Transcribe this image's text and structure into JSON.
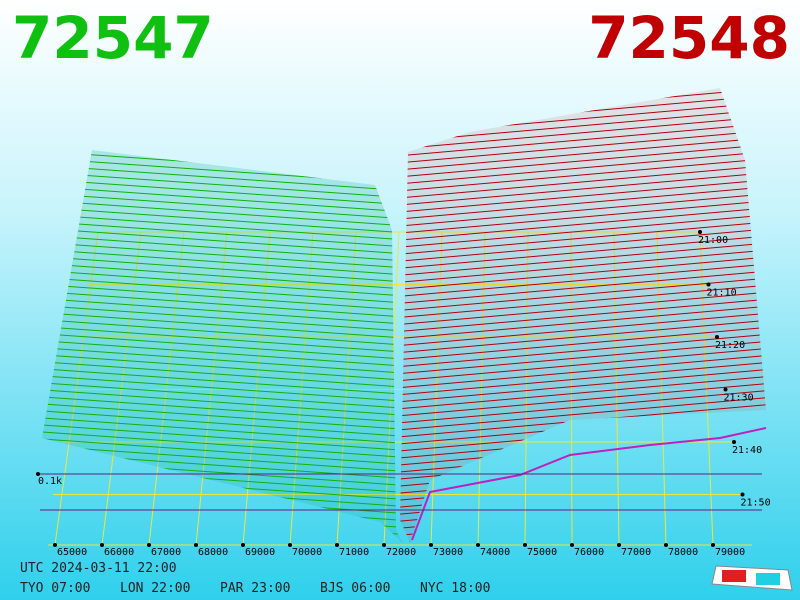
{
  "bid_price": "72547",
  "ask_price": "72548",
  "price_ticks": [
    65000,
    66000,
    67000,
    68000,
    69000,
    70000,
    71000,
    72000,
    73000,
    74000,
    75000,
    76000,
    77000,
    78000,
    79000
  ],
  "time_ticks": [
    "21:00",
    "21:10",
    "21:20",
    "21:30",
    "21:40",
    "21:50"
  ],
  "size_label": "0.1k",
  "utc": "UTC 2024-03-11 22:00",
  "clocks": [
    "TYO 07:00",
    "LON 22:00",
    "PAR 23:00",
    "BJS 06:00",
    "NYC 18:00"
  ]
}
